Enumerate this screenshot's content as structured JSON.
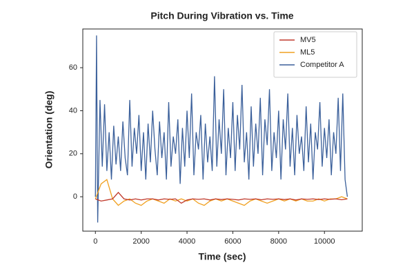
{
  "chart_data": {
    "type": "line",
    "title": "Pitch During Vibration vs. Time",
    "x_label": "Time (sec)",
    "y_label": "Orientation (deg)",
    "xlim": [
      -550,
      11650
    ],
    "xticks": [
      0,
      2000,
      4000,
      6000,
      8000,
      10000
    ],
    "ylim": [
      -16,
      78
    ],
    "yticks": [
      0,
      20,
      40,
      60
    ],
    "grid": false,
    "legend": "upper right",
    "series": [
      {
        "name": "MV5",
        "color": "#c0392b",
        "x": [
          0,
          250,
          500,
          750,
          1000,
          1250,
          1500,
          1750,
          2000,
          2250,
          2500,
          2750,
          3000,
          3250,
          3500,
          3750,
          4000,
          4250,
          4500,
          4750,
          5000,
          5250,
          5500,
          5750,
          6000,
          6250,
          6500,
          6750,
          7000,
          7250,
          7500,
          7750,
          8000,
          8250,
          8500,
          8750,
          9000,
          9250,
          9500,
          9750,
          10000,
          10250,
          10500,
          10750,
          11000
        ],
        "values": [
          -1,
          -2,
          -1.5,
          -1,
          2,
          -1,
          -1.5,
          -1,
          -1.5,
          -1,
          -1,
          -1.5,
          -1,
          -1.2,
          -1,
          -3,
          -1.5,
          -1,
          -1.2,
          -1,
          -1.5,
          -1,
          -1.3,
          -1,
          -1.2,
          -1.5,
          -1,
          -1.2,
          -1,
          -1.4,
          -1,
          -1.2,
          -1,
          -1.3,
          -1,
          -1.5,
          -1,
          -1.2,
          -1,
          -1.3,
          -1,
          -1.2,
          -1,
          -1.4,
          -1
        ]
      },
      {
        "name": "ML5",
        "color": "#f0a020",
        "x": [
          0,
          250,
          500,
          750,
          1000,
          1250,
          1500,
          1750,
          2000,
          2250,
          2500,
          2750,
          3000,
          3250,
          3500,
          3750,
          4000,
          4250,
          4500,
          4750,
          5000,
          5250,
          5500,
          5750,
          6000,
          6250,
          6500,
          6750,
          7000,
          7250,
          7500,
          7750,
          8000,
          8250,
          8500,
          8750,
          9000,
          9250,
          9500,
          9750,
          10000,
          10250,
          10500,
          10750,
          11000
        ],
        "values": [
          -1,
          6,
          8,
          -1,
          -4,
          -2,
          -1,
          -3,
          -4,
          -2,
          -1,
          -2,
          -3,
          -1,
          -2,
          -1,
          -2,
          -1,
          -3,
          -4,
          -2,
          -1,
          -2,
          -1,
          -2,
          -3,
          -4,
          -2,
          -1,
          -2,
          -3,
          -2,
          -1,
          -2,
          -1,
          -2,
          -1,
          -2,
          -2,
          -1,
          -2,
          -1,
          -1,
          0,
          -1
        ]
      },
      {
        "name": "Competitor A",
        "color": "#3a5f9a",
        "x": [
          0,
          50,
          100,
          200,
          300,
          400,
          500,
          600,
          700,
          800,
          900,
          1000,
          1100,
          1200,
          1300,
          1400,
          1500,
          1600,
          1700,
          1800,
          1900,
          2000,
          2100,
          2200,
          2300,
          2400,
          2500,
          2600,
          2700,
          2800,
          2900,
          3000,
          3100,
          3200,
          3300,
          3400,
          3500,
          3600,
          3700,
          3800,
          3900,
          4000,
          4100,
          4200,
          4300,
          4400,
          4500,
          4600,
          4700,
          4800,
          4900,
          5000,
          5100,
          5200,
          5300,
          5400,
          5500,
          5600,
          5700,
          5800,
          5900,
          6000,
          6100,
          6200,
          6300,
          6400,
          6500,
          6600,
          6700,
          6800,
          6900,
          7000,
          7100,
          7200,
          7300,
          7400,
          7500,
          7600,
          7700,
          7800,
          7900,
          8000,
          8100,
          8200,
          8300,
          8400,
          8500,
          8600,
          8700,
          8800,
          8900,
          9000,
          9100,
          9200,
          9300,
          9400,
          9500,
          9600,
          9700,
          9800,
          9900,
          10000,
          10100,
          10200,
          10300,
          10400,
          10500,
          10600,
          10700,
          10800,
          10900,
          11000
        ],
        "values": [
          0,
          75,
          -12,
          45,
          14,
          43,
          12,
          30,
          8,
          33,
          15,
          28,
          12,
          35,
          18,
          10,
          45,
          14,
          32,
          20,
          38,
          12,
          30,
          8,
          34,
          16,
          40,
          22,
          10,
          35,
          18,
          30,
          8,
          44,
          14,
          28,
          20,
          36,
          6,
          32,
          14,
          40,
          18,
          48,
          10,
          30,
          22,
          38,
          8,
          34,
          16,
          28,
          12,
          56,
          14,
          36,
          20,
          50,
          10,
          32,
          18,
          44,
          12,
          38,
          22,
          52,
          16,
          30,
          8,
          42,
          14,
          34,
          20,
          46,
          10,
          36,
          24,
          50,
          12,
          30,
          18,
          40,
          8,
          36,
          22,
          48,
          14,
          32,
          10,
          38,
          20,
          28,
          12,
          42,
          16,
          34,
          8,
          30,
          22,
          44,
          14,
          32,
          18,
          36,
          10,
          30,
          20,
          46,
          12,
          48,
          8,
          0
        ]
      }
    ]
  }
}
